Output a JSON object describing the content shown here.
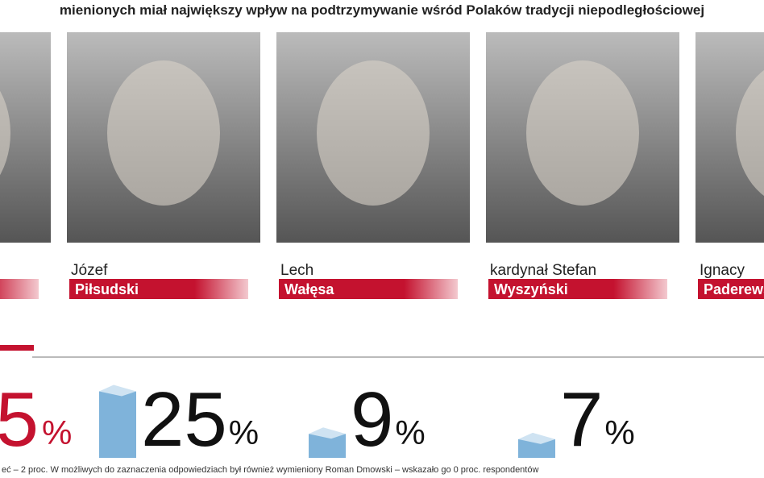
{
  "title": "mienionych miał największy wpływ na podtrzymywanie wśród Polaków tradycji niepodległościowej",
  "unit": "%",
  "people": [
    {
      "first": "",
      "last": "",
      "value": 5
    },
    {
      "first": "Józef",
      "last": "Piłsudski",
      "value": 25
    },
    {
      "first": "Lech",
      "last": "Wałęsa",
      "value": 9
    },
    {
      "first": "kardynał Stefan",
      "last": "Wyszyński",
      "value": 7
    },
    {
      "first": "Ignacy",
      "last": "Paderewski"
    }
  ],
  "footnote": "eć – 2 proc. W możliwych do zaznaczenia odpowiedziach był również wymieniony Roman Dmowski – wskazało go 0 proc. respondentów"
}
